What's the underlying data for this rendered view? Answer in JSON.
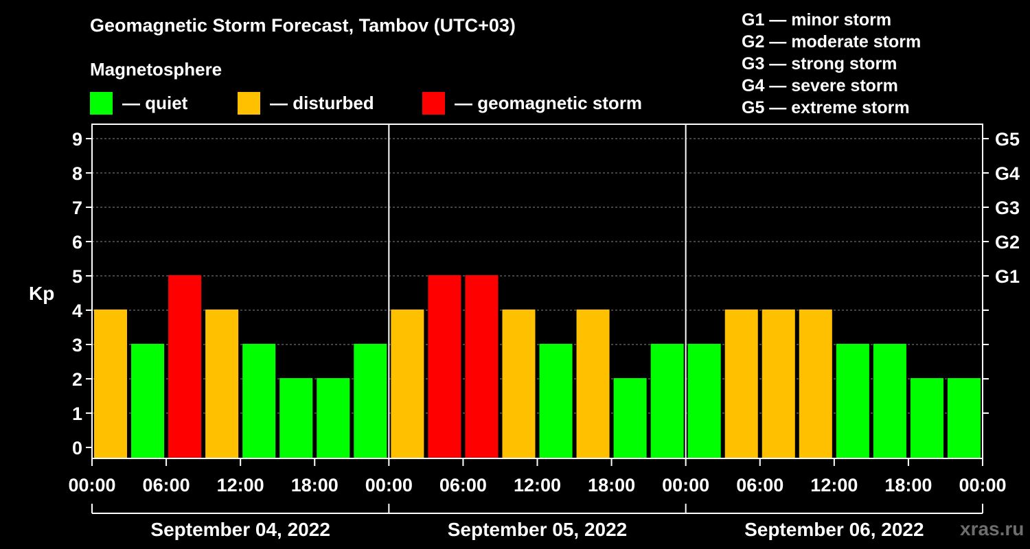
{
  "title": "Geomagnetic Storm Forecast, Tambov (UTC+03)",
  "subtitle": "Magnetosphere",
  "legend": [
    {
      "label": "— quiet",
      "color": "#00ff00"
    },
    {
      "label": "— disturbed",
      "color": "#ffc000"
    },
    {
      "label": "— geomagnetic storm",
      "color": "#ff0000"
    }
  ],
  "g_scale": [
    "G1 — minor storm",
    "G2 — moderate storm",
    "G3 — strong storm",
    "G4 — severe storm",
    "G5 — extreme storm"
  ],
  "watermark": "xras.ru",
  "colors": {
    "quiet": "#00ff00",
    "disturbed": "#ffc000",
    "storm": "#ff0000",
    "grid": "#888888"
  },
  "chart_data": {
    "type": "bar",
    "ylabel": "Kp",
    "ylim": [
      0,
      9
    ],
    "yticks": [
      0,
      1,
      2,
      3,
      4,
      5,
      6,
      7,
      8,
      9
    ],
    "right_ticks": [
      {
        "value": 5,
        "label": "G1"
      },
      {
        "value": 6,
        "label": "G2"
      },
      {
        "value": 7,
        "label": "G3"
      },
      {
        "value": 8,
        "label": "G4"
      },
      {
        "value": 9,
        "label": "G5"
      }
    ],
    "grid": true,
    "x_tick_labels": [
      "00:00",
      "06:00",
      "12:00",
      "18:00",
      "00:00",
      "06:00",
      "12:00",
      "18:00",
      "00:00",
      "06:00",
      "12:00",
      "18:00",
      "00:00"
    ],
    "days": [
      {
        "label": "September 04, 2022",
        "values": [
          4,
          3,
          5,
          4,
          3,
          2,
          2,
          3
        ]
      },
      {
        "label": "September 05, 2022",
        "values": [
          4,
          5,
          5,
          4,
          3,
          4,
          2,
          3
        ]
      },
      {
        "label": "September 06, 2022",
        "values": [
          3,
          4,
          4,
          4,
          3,
          3,
          2,
          2
        ]
      }
    ]
  }
}
